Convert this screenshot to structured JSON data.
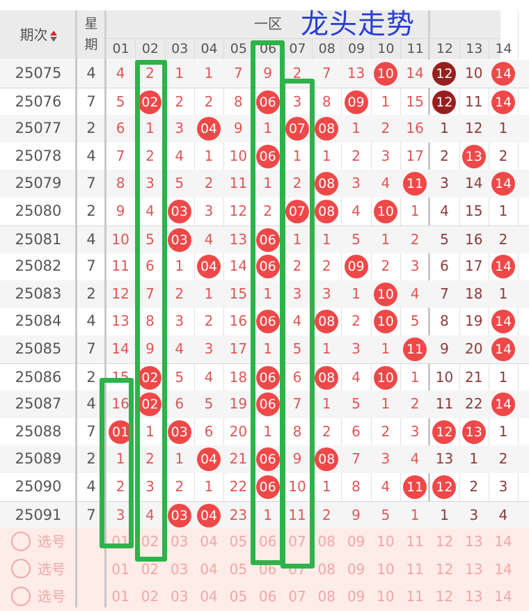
{
  "header": {
    "period_label": "期次",
    "week_label_1": "星",
    "week_label_2": "期",
    "zone1_label": "一区",
    "zone2_label": "",
    "columns": [
      "01",
      "02",
      "03",
      "04",
      "05",
      "06",
      "07",
      "08",
      "09",
      "10",
      "11",
      "12",
      "13",
      "14"
    ]
  },
  "colors": {
    "ball": "#ef4848",
    "ball_dark": "#97201f",
    "zone1_text": "#e05555",
    "zone2_text": "#8b3a3a",
    "annotation_box": "#2db34a",
    "annotation_text": "#2a3fd6"
  },
  "rows": [
    {
      "period": "25075",
      "week": "4",
      "cells": [
        "4",
        "2",
        "1",
        "1",
        "7",
        "9",
        "2",
        "7",
        "13",
        "10",
        "14",
        "12",
        "10",
        "14"
      ],
      "dark": [
        "12"
      ]
    },
    {
      "period": "25076",
      "week": "7",
      "cells": [
        "5",
        "02",
        "2",
        "2",
        "8",
        "06",
        "3",
        "8",
        "09",
        "1",
        "15",
        "12",
        "11",
        "14"
      ],
      "dark": [
        "12"
      ]
    },
    {
      "period": "25077",
      "week": "2",
      "cells": [
        "6",
        "1",
        "3",
        "04",
        "9",
        "1",
        "07",
        "08",
        "1",
        "2",
        "16",
        "1",
        "12",
        "1"
      ]
    },
    {
      "period": "25078",
      "week": "4",
      "cells": [
        "7",
        "2",
        "4",
        "1",
        "10",
        "06",
        "1",
        "1",
        "2",
        "3",
        "17",
        "2",
        "13",
        "2"
      ]
    },
    {
      "period": "25079",
      "week": "7",
      "cells": [
        "8",
        "3",
        "5",
        "2",
        "11",
        "1",
        "2",
        "08",
        "3",
        "4",
        "11",
        "3",
        "14",
        "14"
      ]
    },
    {
      "period": "25080",
      "week": "2",
      "cells": [
        "9",
        "4",
        "03",
        "3",
        "12",
        "2",
        "07",
        "08",
        "4",
        "10",
        "1",
        "4",
        "15",
        "1"
      ]
    },
    {
      "period": "25081",
      "week": "4",
      "cells": [
        "10",
        "5",
        "03",
        "4",
        "13",
        "06",
        "1",
        "1",
        "5",
        "1",
        "2",
        "5",
        "16",
        "2"
      ]
    },
    {
      "period": "25082",
      "week": "7",
      "cells": [
        "11",
        "6",
        "1",
        "04",
        "14",
        "06",
        "2",
        "2",
        "09",
        "2",
        "3",
        "6",
        "17",
        "14"
      ]
    },
    {
      "period": "25083",
      "week": "2",
      "cells": [
        "12",
        "7",
        "2",
        "1",
        "15",
        "1",
        "3",
        "3",
        "1",
        "10",
        "4",
        "7",
        "18",
        "1"
      ]
    },
    {
      "period": "25084",
      "week": "4",
      "cells": [
        "13",
        "8",
        "3",
        "2",
        "16",
        "06",
        "4",
        "08",
        "2",
        "10",
        "5",
        "8",
        "19",
        "14"
      ]
    },
    {
      "period": "25085",
      "week": "7",
      "cells": [
        "14",
        "9",
        "4",
        "3",
        "17",
        "1",
        "5",
        "1",
        "3",
        "1",
        "11",
        "9",
        "20",
        "14"
      ]
    },
    {
      "period": "25086",
      "week": "2",
      "cells": [
        "15",
        "02",
        "5",
        "4",
        "18",
        "06",
        "6",
        "08",
        "4",
        "10",
        "1",
        "10",
        "21",
        "1"
      ]
    },
    {
      "period": "25087",
      "week": "4",
      "cells": [
        "16",
        "02",
        "6",
        "5",
        "19",
        "06",
        "7",
        "1",
        "5",
        "1",
        "2",
        "11",
        "22",
        "14"
      ]
    },
    {
      "period": "25088",
      "week": "7",
      "cells": [
        "01",
        "1",
        "03",
        "6",
        "20",
        "1",
        "8",
        "2",
        "6",
        "2",
        "3",
        "12",
        "13",
        "1"
      ]
    },
    {
      "period": "25089",
      "week": "2",
      "cells": [
        "1",
        "2",
        "1",
        "04",
        "21",
        "06",
        "9",
        "08",
        "7",
        "3",
        "4",
        "13",
        "1",
        "2"
      ]
    },
    {
      "period": "25090",
      "week": "4",
      "cells": [
        "2",
        "3",
        "2",
        "1",
        "22",
        "06",
        "10",
        "1",
        "8",
        "4",
        "11",
        "12",
        "2",
        "3"
      ]
    },
    {
      "period": "25091",
      "week": "7",
      "cells": [
        "3",
        "4",
        "03",
        "04",
        "23",
        "1",
        "11",
        "2",
        "9",
        "5",
        "1",
        "1",
        "3",
        "4"
      ]
    }
  ],
  "pick_rows": [
    {
      "label": "选号"
    },
    {
      "label": "选号"
    },
    {
      "label": "选号"
    }
  ],
  "annotation": {
    "text": "龙头走势"
  }
}
